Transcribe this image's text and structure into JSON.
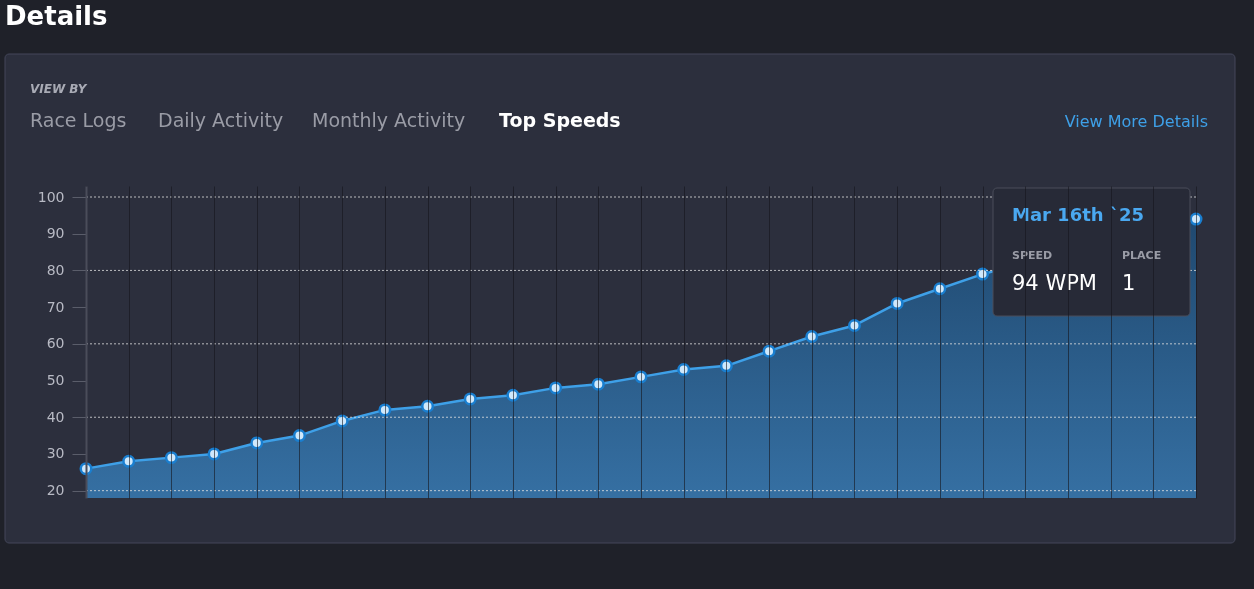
{
  "chart_data": {
    "type": "area",
    "title": "Details",
    "categories": [
      null,
      null,
      null,
      null,
      null,
      null,
      null,
      null,
      null,
      null,
      null,
      null,
      null,
      null,
      null,
      null,
      null,
      null,
      null,
      null,
      null,
      null,
      null,
      null,
      null,
      null,
      null
    ],
    "series": [
      {
        "color": "#3ea0e8",
        "values": [
          26,
          28,
          29,
          30,
          33,
          35,
          39,
          42,
          43,
          45,
          46,
          48,
          49,
          51,
          53,
          54,
          58,
          62,
          65,
          71,
          75,
          79,
          null,
          null,
          null,
          null,
          94
        ]
      }
    ],
    "ylim": [
      18,
      103
    ],
    "yticks": [
      20,
      30,
      40,
      50,
      60,
      70,
      80,
      90,
      100
    ],
    "grid": true,
    "marker": "circle",
    "line_style": "solid",
    "tick_labels": "y",
    "annotations": [
      "VIEW BY",
      "Race Logs",
      "Daily Activity",
      "Monthly Activity",
      "Top Speeds",
      "View More Details",
      "Mar 16th `25",
      "SPEED",
      "94 WPM",
      "PLACE",
      "1"
    ]
  }
}
